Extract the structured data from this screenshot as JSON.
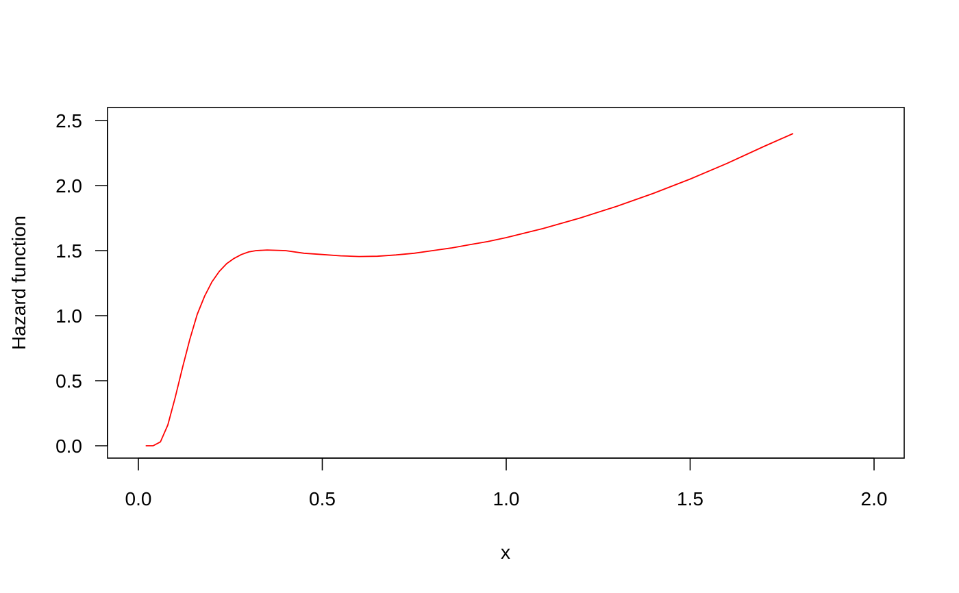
{
  "chart_data": {
    "type": "line",
    "title": "",
    "xlabel": "x",
    "ylabel": "Hazard function",
    "xlim": [
      -0.083,
      2.083
    ],
    "ylim": [
      -0.1,
      2.6
    ],
    "x_ticks": [
      0.0,
      0.5,
      1.0,
      1.5,
      2.0
    ],
    "x_tick_labels": [
      "0.0",
      "0.5",
      "1.0",
      "1.5",
      "2.0"
    ],
    "y_ticks": [
      0.0,
      0.5,
      1.0,
      1.5,
      2.0,
      2.5
    ],
    "y_tick_labels": [
      "0.0",
      "0.5",
      "1.0",
      "1.5",
      "2.0",
      "2.5"
    ],
    "grid": false,
    "series": [
      {
        "color": "#ff0000",
        "x": [
          0.02,
          0.04,
          0.06,
          0.08,
          0.1,
          0.12,
          0.14,
          0.16,
          0.18,
          0.2,
          0.22,
          0.24,
          0.26,
          0.28,
          0.3,
          0.32,
          0.35,
          0.4,
          0.45,
          0.5,
          0.55,
          0.6,
          0.65,
          0.7,
          0.75,
          0.8,
          0.85,
          0.9,
          0.95,
          1.0,
          1.1,
          1.2,
          1.3,
          1.4,
          1.5,
          1.6,
          1.7,
          1.78
        ],
        "y": [
          0.0,
          0.0,
          0.03,
          0.16,
          0.37,
          0.6,
          0.82,
          1.01,
          1.15,
          1.26,
          1.34,
          1.4,
          1.44,
          1.47,
          1.49,
          1.5,
          1.505,
          1.5,
          1.48,
          1.47,
          1.46,
          1.455,
          1.457,
          1.467,
          1.48,
          1.5,
          1.52,
          1.545,
          1.57,
          1.6,
          1.67,
          1.75,
          1.84,
          1.94,
          2.05,
          2.17,
          2.3,
          2.4
        ]
      }
    ]
  }
}
